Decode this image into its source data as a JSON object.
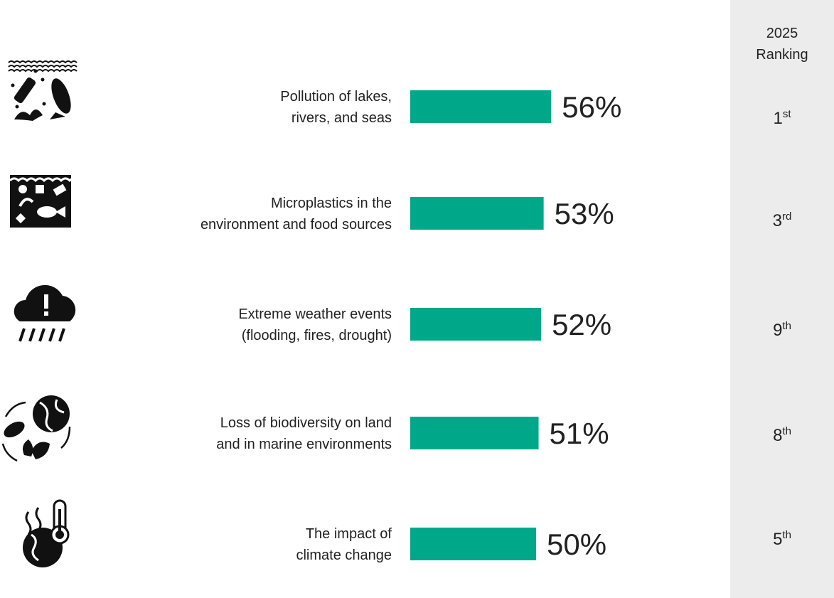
{
  "chart_data": {
    "type": "bar",
    "orientation": "horizontal",
    "bar_color": "#00A88A",
    "categories": [
      {
        "line1": "Pollution of lakes,",
        "line2": "rivers, and seas",
        "icon": "water-pollution-icon"
      },
      {
        "line1": "Microplastics in the",
        "line2": "environment and food sources",
        "icon": "microplastics-icon"
      },
      {
        "line1": "Extreme weather events",
        "line2": "(flooding, fires, drought)",
        "icon": "storm-cloud-warning-icon"
      },
      {
        "line1": "Loss of biodiversity on land",
        "line2": "and in marine environments",
        "icon": "biodiversity-cycle-icon"
      },
      {
        "line1": "The impact of",
        "line2": "climate change",
        "icon": "hot-globe-thermometer-icon"
      }
    ],
    "values": [
      56,
      53,
      52,
      51,
      50
    ],
    "value_labels": [
      "56%",
      "53%",
      "52%",
      "51%",
      "50%"
    ],
    "unit": "%",
    "legend": "none",
    "grid": false
  },
  "ranking": {
    "header_line1": "2025",
    "header_line2": "Ranking",
    "items": [
      {
        "number": "1",
        "suffix": "st"
      },
      {
        "number": "3",
        "suffix": "rd"
      },
      {
        "number": "9",
        "suffix": "th"
      },
      {
        "number": "8",
        "suffix": "th"
      },
      {
        "number": "5",
        "suffix": "th"
      }
    ]
  }
}
